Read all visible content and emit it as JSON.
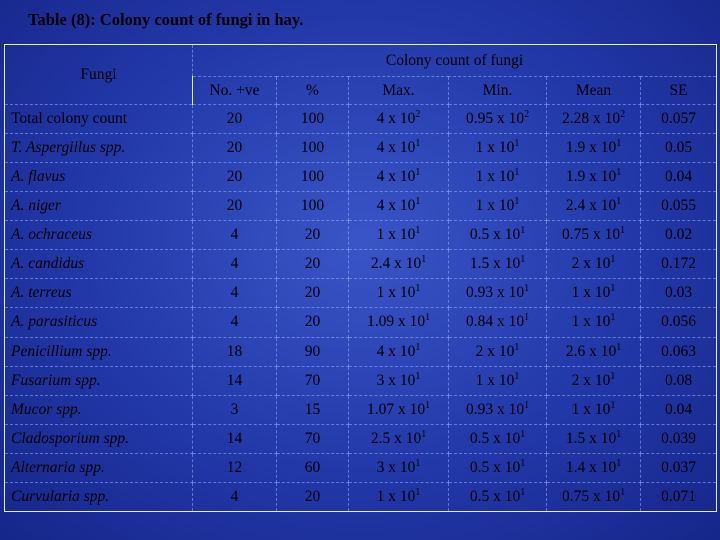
{
  "title": "Table (8): Colony count of fungi in hay.",
  "header": {
    "fungi": "Fungi",
    "group": "Colony count of fungi",
    "columns": [
      "No. +ve",
      "%",
      "Max.",
      "Min.",
      "Mean",
      "SE"
    ]
  },
  "rows": [
    {
      "name": "Total colony count",
      "italic": false,
      "no": "20",
      "pct": "100",
      "max": [
        "4 x 10",
        "2"
      ],
      "min": [
        "0.95 x 10",
        "2"
      ],
      "mean": [
        "2.28 x 10",
        "2"
      ],
      "se": "0.057"
    },
    {
      "name": "T. Aspergillus spp.",
      "italic": true,
      "no": "20",
      "pct": "100",
      "max": [
        "4 x 10",
        "1"
      ],
      "min": [
        "1 x 10",
        "1"
      ],
      "mean": [
        "1.9 x 10",
        "1"
      ],
      "se": "0.05"
    },
    {
      "name": "A. flavus",
      "italic": true,
      "no": "20",
      "pct": "100",
      "max": [
        "4 x 10",
        "1"
      ],
      "min": [
        "1 x 10",
        "1"
      ],
      "mean": [
        "1.9 x 10",
        "1"
      ],
      "se": "0.04"
    },
    {
      "name": "A. niger",
      "italic": true,
      "no": "20",
      "pct": "100",
      "max": [
        "4 x 10",
        "1"
      ],
      "min": [
        "1 x 10",
        "1"
      ],
      "mean": [
        "2.4 x 10",
        "1"
      ],
      "se": "0.055"
    },
    {
      "name": "A. ochraceus",
      "italic": true,
      "no": "4",
      "pct": "20",
      "max": [
        "1 x 10",
        "1"
      ],
      "min": [
        "0.5 x 10",
        "1"
      ],
      "mean": [
        "0.75 x 10",
        "1"
      ],
      "se": "0.02"
    },
    {
      "name": "A. candidus",
      "italic": true,
      "no": "4",
      "pct": "20",
      "max": [
        "2.4 x 10",
        "1"
      ],
      "min": [
        "1.5 x 10",
        "1"
      ],
      "mean": [
        "2 x 10",
        "1"
      ],
      "se": "0.172"
    },
    {
      "name": "A. terreus",
      "italic": true,
      "no": "4",
      "pct": "20",
      "max": [
        "1 x 10",
        "1"
      ],
      "min": [
        "0.93 x 10",
        "1"
      ],
      "mean": [
        "1 x 10",
        "1"
      ],
      "se": "0.03"
    },
    {
      "name": "A. parasiticus",
      "italic": true,
      "no": "4",
      "pct": "20",
      "max": [
        "1.09 x 10",
        "1"
      ],
      "min": [
        "0.84 x 10",
        "1"
      ],
      "mean": [
        "1 x 10",
        "1"
      ],
      "se": "0.056"
    },
    {
      "name": "Penicillium spp.",
      "italic": true,
      "no": "18",
      "pct": "90",
      "max": [
        "4 x 10",
        "1"
      ],
      "min": [
        "2 x 10",
        "1"
      ],
      "mean": [
        "2.6 x 10",
        "1"
      ],
      "se": "0.063"
    },
    {
      "name": "Fusarium spp.",
      "italic": true,
      "no": "14",
      "pct": "70",
      "max": [
        "3 x 10",
        "1"
      ],
      "min": [
        "1 x 10",
        "1"
      ],
      "mean": [
        "2 x 10",
        "1"
      ],
      "se": "0.08"
    },
    {
      "name": "Mucor spp.",
      "italic": true,
      "no": "3",
      "pct": "15",
      "max": [
        "1.07 x 10",
        "1"
      ],
      "min": [
        "0.93 x 10",
        "1"
      ],
      "mean": [
        "1 x 10",
        "1"
      ],
      "se": "0.04"
    },
    {
      "name": "Cladosporium spp.",
      "italic": true,
      "no": "14",
      "pct": "70",
      "max": [
        "2.5 x 10",
        "1"
      ],
      "min": [
        "0.5 x 10",
        "1"
      ],
      "mean": [
        "1.5 x 10",
        "1"
      ],
      "se": "0.039"
    },
    {
      "name": "Alternaria  spp.",
      "italic": true,
      "no": "12",
      "pct": "60",
      "max": [
        "3 x 10",
        "1"
      ],
      "min": [
        "0.5 x 10",
        "1"
      ],
      "mean": [
        "1.4 x 10",
        "1"
      ],
      "se": "0.037"
    },
    {
      "name": "Curvularia spp.",
      "italic": true,
      "no": "4",
      "pct": "20",
      "max": [
        "1 x 10",
        "1"
      ],
      "min": [
        "0.5 x 10",
        "1"
      ],
      "mean": [
        "0.75 x 10",
        "1"
      ],
      "se": "0.071"
    }
  ]
}
